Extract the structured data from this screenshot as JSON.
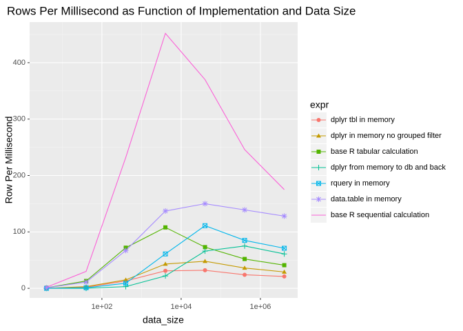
{
  "chart_data": {
    "type": "line",
    "title": "Rows Per Millisecond as Function of Implementation and Data Size",
    "x_label": "data_size",
    "y_label": "Row Per Millisecond",
    "legend_title": "expr",
    "x_scale": "log",
    "grid": true,
    "minor_grid": true,
    "legend_position": "right",
    "x": [
      4,
      40,
      400,
      4000,
      40000,
      400000,
      4000000
    ],
    "xlim": [
      1.5,
      8700000
    ],
    "xticks": [
      {
        "value": 100,
        "label": "1e+02"
      },
      {
        "value": 10000,
        "label": "1e+04"
      },
      {
        "value": 1000000,
        "label": "1e+06"
      }
    ],
    "ylim": [
      -17,
      472
    ],
    "yticks": [
      0,
      100,
      200,
      300,
      400
    ],
    "series": [
      {
        "name": "dplyr tbl in memory",
        "color": "#F8766D",
        "shape": "circle",
        "values": [
          0,
          2,
          13,
          31,
          32,
          24,
          21
        ]
      },
      {
        "name": "dplyr in memory no grouped filter",
        "color": "#C49A00",
        "shape": "triangle",
        "values": [
          0,
          3,
          15,
          43,
          48,
          36,
          29
        ]
      },
      {
        "name": "base R tabular calculation",
        "color": "#53B400",
        "shape": "square",
        "values": [
          1,
          13,
          72,
          108,
          73,
          52,
          41
        ]
      },
      {
        "name": "dplyr from memory to db and back",
        "color": "#00C094",
        "shape": "plus",
        "values": [
          0,
          0,
          3,
          22,
          66,
          75,
          61
        ]
      },
      {
        "name": "rquery in memory",
        "color": "#00B6EB",
        "shape": "boxcross",
        "values": [
          0,
          1,
          9,
          61,
          111,
          85,
          71
        ]
      },
      {
        "name": "data.table in memory",
        "color": "#A58AFF",
        "shape": "asterisk",
        "values": [
          1,
          11,
          67,
          137,
          150,
          139,
          128
        ]
      },
      {
        "name": "base R sequential calculation",
        "color": "#FB61D7",
        "shape": "none",
        "values": [
          2,
          30,
          232,
          452,
          370,
          246,
          175
        ]
      }
    ]
  }
}
